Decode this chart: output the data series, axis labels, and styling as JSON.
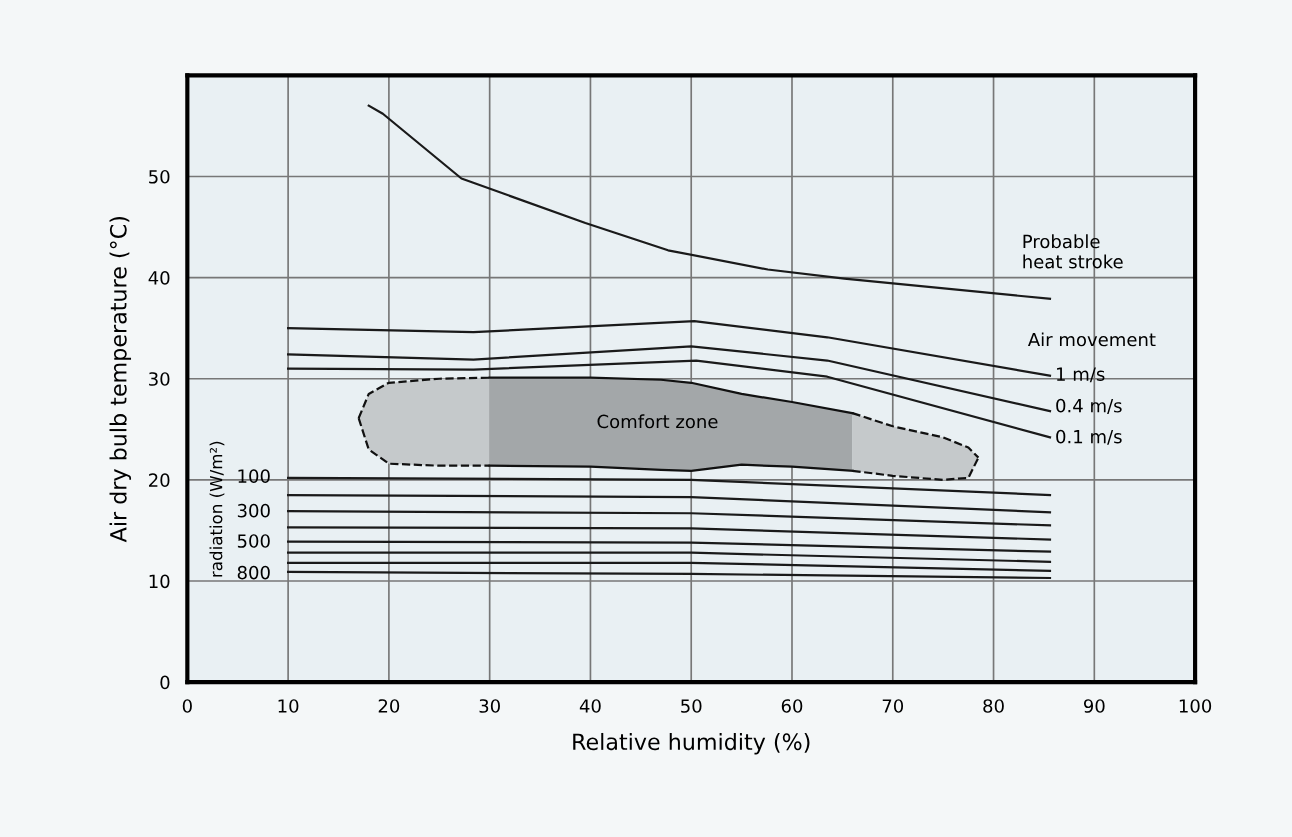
{
  "chart_data": {
    "type": "line",
    "xlabel": "Relative humidity (%)",
    "ylabel": "Air dry bulb temperature (°C)",
    "xlim": [
      0,
      100
    ],
    "ylim": [
      0,
      60
    ],
    "xticks": [
      0,
      10,
      20,
      30,
      40,
      50,
      60,
      70,
      80,
      90,
      100
    ],
    "yticks": [
      0,
      10,
      20,
      30,
      40,
      50
    ],
    "grid": true,
    "marker": "none",
    "series": [
      {
        "color": "#111111",
        "line_style": "dashed",
        "x": [
          17,
          18,
          20,
          25,
          30
        ],
        "values": [
          26.1,
          28.5,
          29.6,
          30,
          30.1
        ]
      },
      {
        "color": "#111111",
        "line_style": "dashed",
        "x": [
          17,
          18,
          20,
          25,
          30
        ],
        "values": [
          26.1,
          23.0,
          21.6,
          21.4,
          21.4
        ]
      },
      {
        "color": "#111111",
        "line_style": "solid",
        "x": [
          30,
          40,
          47,
          50,
          55,
          60,
          66
        ],
        "values": [
          30.1,
          30.1,
          29.9,
          29.6,
          28.5,
          27.7,
          26.6
        ]
      },
      {
        "color": "#111111",
        "line_style": "solid",
        "x": [
          30,
          40,
          47,
          50,
          55,
          60,
          66
        ],
        "values": [
          21.4,
          21.3,
          21.0,
          20.9,
          21.5,
          21.3,
          20.9
        ]
      },
      {
        "color": "#111111",
        "line_style": "dashed",
        "x": [
          66,
          70,
          75,
          77.5,
          78.5
        ],
        "values": [
          26.6,
          25.3,
          24.2,
          23.2,
          22.2
        ]
      },
      {
        "color": "#111111",
        "line_style": "dashed",
        "x": [
          66,
          70,
          75,
          77.5,
          78.5
        ],
        "values": [
          20.9,
          20.4,
          20.0,
          20.2,
          22.2
        ]
      },
      {
        "color": "#1a1a1a",
        "x": [
          18,
          19.4,
          27.2,
          39.5,
          47.7,
          57.6,
          65.2,
          85.6
        ],
        "values": [
          57,
          56.2,
          49.8,
          45.4,
          42.7,
          40.8,
          39.9,
          37.9
        ]
      },
      {
        "color": "#1a1a1a",
        "x": [
          10,
          28.4,
          50.3,
          63.5,
          85.6
        ],
        "values": [
          35,
          34.6,
          35.7,
          34.1,
          30.3
        ]
      },
      {
        "color": "#1a1a1a",
        "x": [
          10,
          28.4,
          50,
          63.5,
          85.6
        ],
        "values": [
          32.4,
          31.9,
          33.2,
          31.8,
          26.8
        ]
      },
      {
        "color": "#1a1a1a",
        "x": [
          10,
          28.4,
          50.5,
          63.5,
          85.6
        ],
        "values": [
          31.0,
          30.9,
          31.8,
          30.2,
          24.2
        ]
      },
      {
        "color": "#1a1a1a",
        "x": [
          10,
          50,
          85.6
        ],
        "values": [
          20.2,
          20.0,
          18.5
        ]
      },
      {
        "color": "#1a1a1a",
        "x": [
          10,
          50,
          85.6
        ],
        "values": [
          18.5,
          18.3,
          16.8
        ]
      },
      {
        "color": "#1a1a1a",
        "x": [
          10,
          50,
          85.6
        ],
        "values": [
          16.9,
          16.7,
          15.5
        ]
      },
      {
        "color": "#1a1a1a",
        "x": [
          10,
          50,
          85.6
        ],
        "values": [
          15.3,
          15.2,
          14.1
        ]
      },
      {
        "color": "#1a1a1a",
        "x": [
          10,
          50,
          85.6
        ],
        "values": [
          13.9,
          13.8,
          12.9
        ]
      },
      {
        "color": "#1a1a1a",
        "x": [
          10,
          50,
          85.6
        ],
        "values": [
          12.8,
          12.8,
          11.9
        ]
      },
      {
        "color": "#1a1a1a",
        "x": [
          10,
          50,
          85.6
        ],
        "values": [
          11.8,
          11.8,
          11.0
        ]
      },
      {
        "color": "#1a1a1a",
        "x": [
          10,
          50,
          85.6
        ],
        "values": [
          10.9,
          10.7,
          10.3
        ]
      }
    ],
    "annotations": [
      "Probable\nheat stroke",
      "Air movement",
      "1 m/s",
      "0.4 m/s",
      "0.1 m/s",
      "Comfort zone",
      "100",
      "300",
      "500",
      "800",
      "radiation (W/m²)"
    ]
  }
}
